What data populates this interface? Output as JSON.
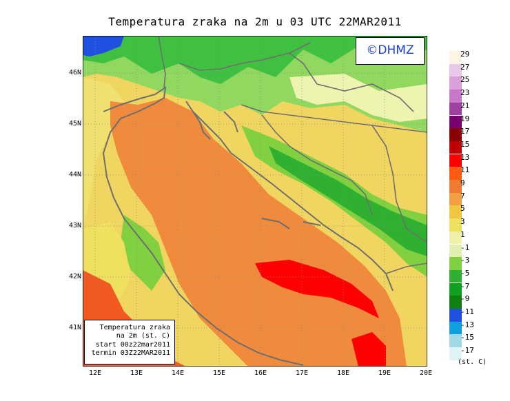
{
  "title": "Temperatura zraka na 2m u 03 UTC 22MAR2011",
  "watermark": "©DHMZ",
  "info_box": {
    "line1": "Temperatura zraka",
    "line2": "na 2m (st. C)",
    "line3": "start 00z22mar2011",
    "line4": "termin 03Z22MAR2011"
  },
  "lat_labels": [
    "46N",
    "45N",
    "44N",
    "43N",
    "42N",
    "41N"
  ],
  "lon_labels": [
    "12E",
    "13E",
    "14E",
    "15E",
    "16E",
    "17E",
    "18E",
    "19E",
    "20E"
  ],
  "legend": {
    "unit": "(st. C)",
    "labels": [
      "29",
      "27",
      "25",
      "23",
      "21",
      "19",
      "17",
      "15",
      "13",
      "11",
      "9",
      "7",
      "5",
      "3",
      "1",
      "-1",
      "-3",
      "-5",
      "-7",
      "-9",
      "-11",
      "-13",
      "-15",
      "-17"
    ],
    "colors": [
      "#fff5e6",
      "#e8c8e8",
      "#d9a0d9",
      "#c878c8",
      "#a040a0",
      "#7a0070",
      "#8b0000",
      "#c00000",
      "#ff0000",
      "#ff5a10",
      "#f07a30",
      "#f0a040",
      "#f0c840",
      "#f0e060",
      "#f0f0a8",
      "#e0f0b0",
      "#80d040",
      "#30b030",
      "#10a020",
      "#108010",
      "#2050e0",
      "#10a0e0",
      "#a0d8e8",
      "#e0f4f8"
    ]
  },
  "colors": {
    "sea_warm": "#f08a3c",
    "sea_hot": "#ff0000",
    "land_mild": "#f0e070",
    "land_cold": "#40c040",
    "coastline": "#707070"
  }
}
